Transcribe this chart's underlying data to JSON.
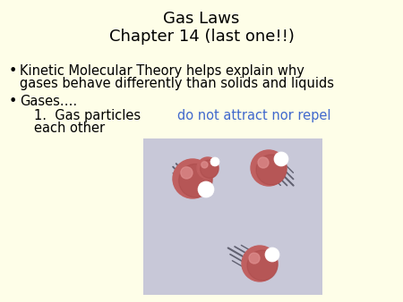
{
  "title_line1": "Gas Laws",
  "title_line2": "Chapter 14 (last one!!)",
  "bullet1_line1": "Kinetic Molecular Theory helps explain why",
  "bullet1_line2": "gases behave differently than solids and liquids",
  "bullet2": "Gases….",
  "num_black": "1.  Gas particles ",
  "num_blue": "do not attract nor repel",
  "num_black2": "each other",
  "background_color": "#FEFEE8",
  "image_bg_color": "#C8C8D8",
  "title_color": "#000000",
  "bullet_color": "#000000",
  "blue_color": "#4169CD",
  "title_fontsize": 13,
  "body_fontsize": 10.5,
  "font_family": "DejaVu Sans"
}
